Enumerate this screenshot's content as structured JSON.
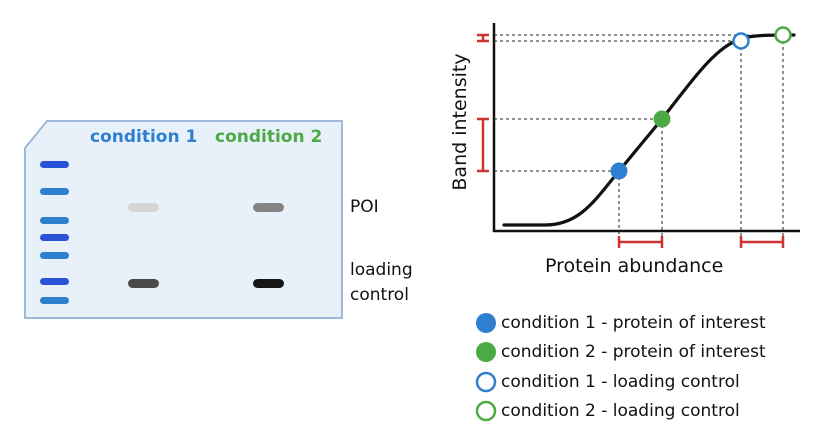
{
  "blot": {
    "conditions": [
      "condition 1",
      "condition 2"
    ],
    "rows": [
      "POI",
      "loading\ncontrol"
    ],
    "band_intensity": {
      "poi": [
        0.22,
        0.55
      ],
      "loading_control": [
        0.8,
        0.95
      ]
    },
    "ladder_bands": 7
  },
  "chart": {
    "xlabel": "Protein abundance",
    "ylabel": "Band intensity",
    "legend": [
      {
        "label": "condition 1 - protein of interest",
        "style": "filled",
        "color": "#2f7fd0"
      },
      {
        "label": "condition 2 - protein of interest",
        "style": "filled",
        "color": "#4caa44"
      },
      {
        "label": "condition 1 - loading control",
        "style": "open",
        "color": "#2f7fd0"
      },
      {
        "label": "condition 2 - loading control",
        "style": "open",
        "color": "#4caa44"
      }
    ]
  },
  "colors": {
    "condition1": "#2f7fd0",
    "condition2": "#4caa44",
    "blot_fill": "#e8f0fa",
    "blot_border": "#9db9d8",
    "ladder": "#2a52d6",
    "bracket": "#cc3333"
  }
}
